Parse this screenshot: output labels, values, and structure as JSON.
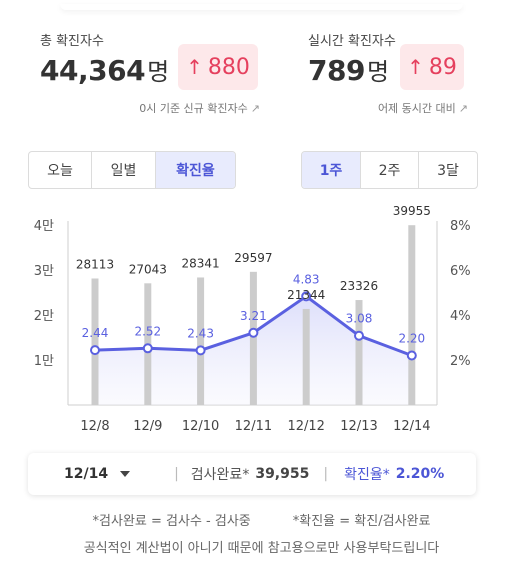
{
  "summary": {
    "total": {
      "label": "총 확진자수",
      "value": "44,364",
      "unit": "명",
      "delta": "880",
      "sub": "0시 기준 신규 확진자수"
    },
    "realtime": {
      "label": "실시간 확진자수",
      "value": "789",
      "unit": "명",
      "delta": "89",
      "sub": "어제 동시간 대비"
    }
  },
  "tabs_left": [
    {
      "label": "오늘",
      "active": false
    },
    {
      "label": "일별",
      "active": false
    },
    {
      "label": "확진율",
      "active": true
    }
  ],
  "tabs_right": [
    {
      "label": "1주",
      "active": true
    },
    {
      "label": "2주",
      "active": false
    },
    {
      "label": "3달",
      "active": false
    }
  ],
  "chart_data": {
    "type": "bar+line",
    "categories": [
      "12/8",
      "12/9",
      "12/10",
      "12/11",
      "12/12",
      "12/13",
      "12/14"
    ],
    "bars": [
      28113,
      27043,
      28341,
      29597,
      21344,
      23326,
      39955
    ],
    "bar_labels": [
      "28113",
      "27043",
      "28341",
      "29597",
      "21344",
      "23326",
      "39955"
    ],
    "line": [
      2.44,
      2.52,
      2.43,
      3.21,
      4.83,
      3.08,
      2.2
    ],
    "line_labels": [
      "2.44",
      "2.52",
      "2.43",
      "3.21",
      "4.83",
      "3.08",
      "2.20"
    ],
    "left_axis": {
      "ylim": [
        0,
        40000
      ],
      "ticks": [
        10000,
        20000,
        30000,
        40000
      ],
      "tick_labels": [
        "1만",
        "2만",
        "3만",
        "4만"
      ]
    },
    "right_axis": {
      "ylim": [
        0,
        8
      ],
      "ticks": [
        2,
        4,
        6,
        8
      ],
      "tick_labels": [
        "2%",
        "4%",
        "6%",
        "8%"
      ]
    },
    "grid": false,
    "colors": {
      "bar": "#cccccc",
      "line": "#5a60e0",
      "area": "#e9eafb",
      "label_line": "#5a60e0",
      "label_bar": "#333333"
    }
  },
  "bottom": {
    "date": "12/14",
    "test_label": "검사완료*",
    "test_value": "39,955",
    "rate_label": "확진율*",
    "rate_value": "2.20%"
  },
  "notes": {
    "line1a": "*검사완료 = 검사수 - 검사중",
    "line1b": "*확진율 = 확진/검사완료",
    "line2": "공식적인 계산법이 아니기 때문에 참고용으로만 사용부탁드립니다"
  },
  "colors": {
    "accent": "#4c56d6",
    "delta_bg": "#fde8ea",
    "delta_fg": "#e5405e"
  }
}
